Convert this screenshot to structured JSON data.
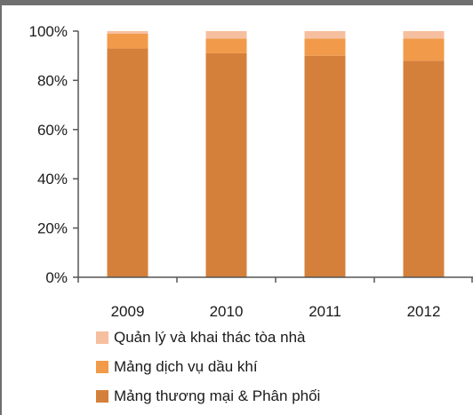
{
  "chart_data": {
    "type": "bar",
    "stacked": true,
    "percent": true,
    "categories": [
      "2009",
      "2010",
      "2011",
      "2012"
    ],
    "series": [
      {
        "name": "Mảng thương mại & Phân phối",
        "values": [
          93,
          91,
          90,
          88
        ],
        "color": "#d5803a"
      },
      {
        "name": "Mảng dịch vụ dầu khí",
        "values": [
          6,
          6,
          7,
          9
        ],
        "color": "#f19a4a"
      },
      {
        "name": "Quản lý và khai thác tòa nhà",
        "values": [
          1,
          3,
          3,
          3
        ],
        "color": "#f6bfa0"
      }
    ],
    "ylim": [
      0,
      100
    ],
    "yticks": [
      "0%",
      "20%",
      "40%",
      "60%",
      "80%",
      "100%"
    ],
    "grid": false,
    "legend_position": "bottom"
  },
  "legend": {
    "items": [
      {
        "label": "Quản lý và khai thác tòa nhà",
        "color": "#f6bfa0"
      },
      {
        "label": "Mảng dịch vụ dầu khí",
        "color": "#f19a4a"
      },
      {
        "label": "Mảng thương mại & Phân phối",
        "color": "#d5803a"
      }
    ]
  }
}
